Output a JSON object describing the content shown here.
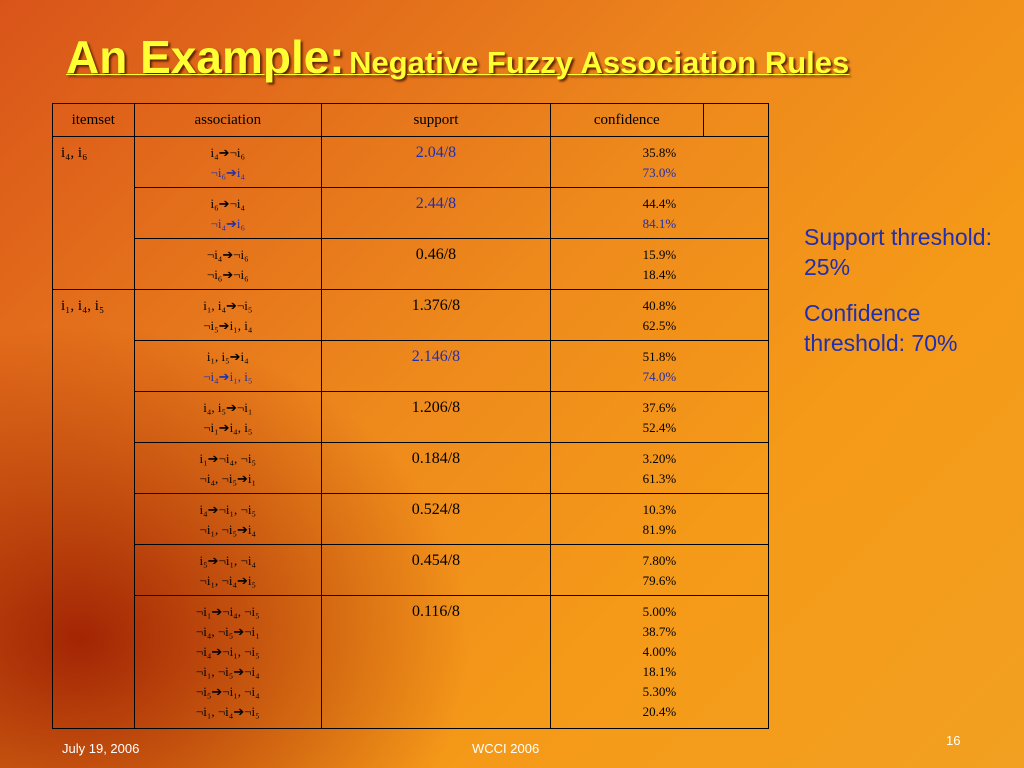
{
  "title": {
    "main": "An Example:",
    "sub": "Negative Fuzzy Association Rules"
  },
  "table": {
    "headers": [
      "itemset",
      "association",
      "support",
      "confidence"
    ],
    "groups": [
      {
        "itemset": "i₄, i₆",
        "rules": [
          {
            "association": [
              "i₄➔¬i₆",
              "¬i₆➔i₄"
            ],
            "support": "2.04/8",
            "confidence": [
              "35.8%",
              "73.0%"
            ],
            "highlight": true
          },
          {
            "association": [
              "i₆➔¬i₄",
              "¬i₄➔i₆"
            ],
            "support": "2.44/8",
            "confidence": [
              "44.4%",
              "84.1%"
            ],
            "highlight": true
          },
          {
            "association": [
              "¬i₄➔¬i₆",
              "¬i₆➔¬i₆"
            ],
            "support": "0.46/8",
            "confidence": [
              "15.9%",
              "18.4%"
            ],
            "highlight": false
          }
        ]
      },
      {
        "itemset": "i₁, i₄, i₅",
        "rules": [
          {
            "association": [
              "i₁, i₄➔¬i₅",
              "¬i₅➔i₁, i₄"
            ],
            "support": "1.376/8",
            "confidence": [
              "40.8%",
              "62.5%"
            ],
            "highlight": false
          },
          {
            "association": [
              "i₁, i₅➔i₄",
              "¬i₄➔i₁, i₅"
            ],
            "support": "2.146/8",
            "confidence": [
              "51.8%",
              "74.0%"
            ],
            "highlight": true
          },
          {
            "association": [
              "i₄, i₅➔¬i₁",
              "¬i₁➔i₄, i₅"
            ],
            "support": "1.206/8",
            "confidence": [
              "37.6%",
              "52.4%"
            ],
            "highlight": false
          },
          {
            "association": [
              "i₁➔¬i₄, ¬i₅",
              "¬i₄, ¬i₅➔i₁"
            ],
            "support": "0.184/8",
            "confidence": [
              "3.20%",
              "61.3%"
            ],
            "highlight": false
          },
          {
            "association": [
              "i₄➔¬i₁, ¬i₅",
              "¬i₁, ¬i₅➔i₄"
            ],
            "support": "0.524/8",
            "confidence": [
              "10.3%",
              "81.9%"
            ],
            "highlight": false
          },
          {
            "association": [
              "i₅➔¬i₁, ¬i₄",
              "¬i₁, ¬i₄➔i₅"
            ],
            "support": "0.454/8",
            "confidence": [
              "7.80%",
              "79.6%"
            ],
            "highlight": false
          },
          {
            "association": [
              "¬i₁➔¬i₄, ¬i₅",
              "¬i₄, ¬i₅➔¬i₁",
              "¬i₄➔¬i₁, ¬i₅",
              "¬i₁, ¬i₅➔¬i₄",
              "¬i₅➔¬i₁, ¬i₄",
              "¬i₁, ¬i₄➔¬i₅"
            ],
            "support": "0.116/8",
            "confidence": [
              "5.00%",
              "38.7%",
              "4.00%",
              "18.1%",
              "5.30%",
              "20.4%"
            ],
            "highlight": false
          }
        ]
      }
    ]
  },
  "notes": [
    "Support threshold: 25%",
    "Confidence threshold: 70%"
  ],
  "footer": {
    "date": "July 19, 2006",
    "event": "WCCI 2006",
    "page": "16"
  }
}
